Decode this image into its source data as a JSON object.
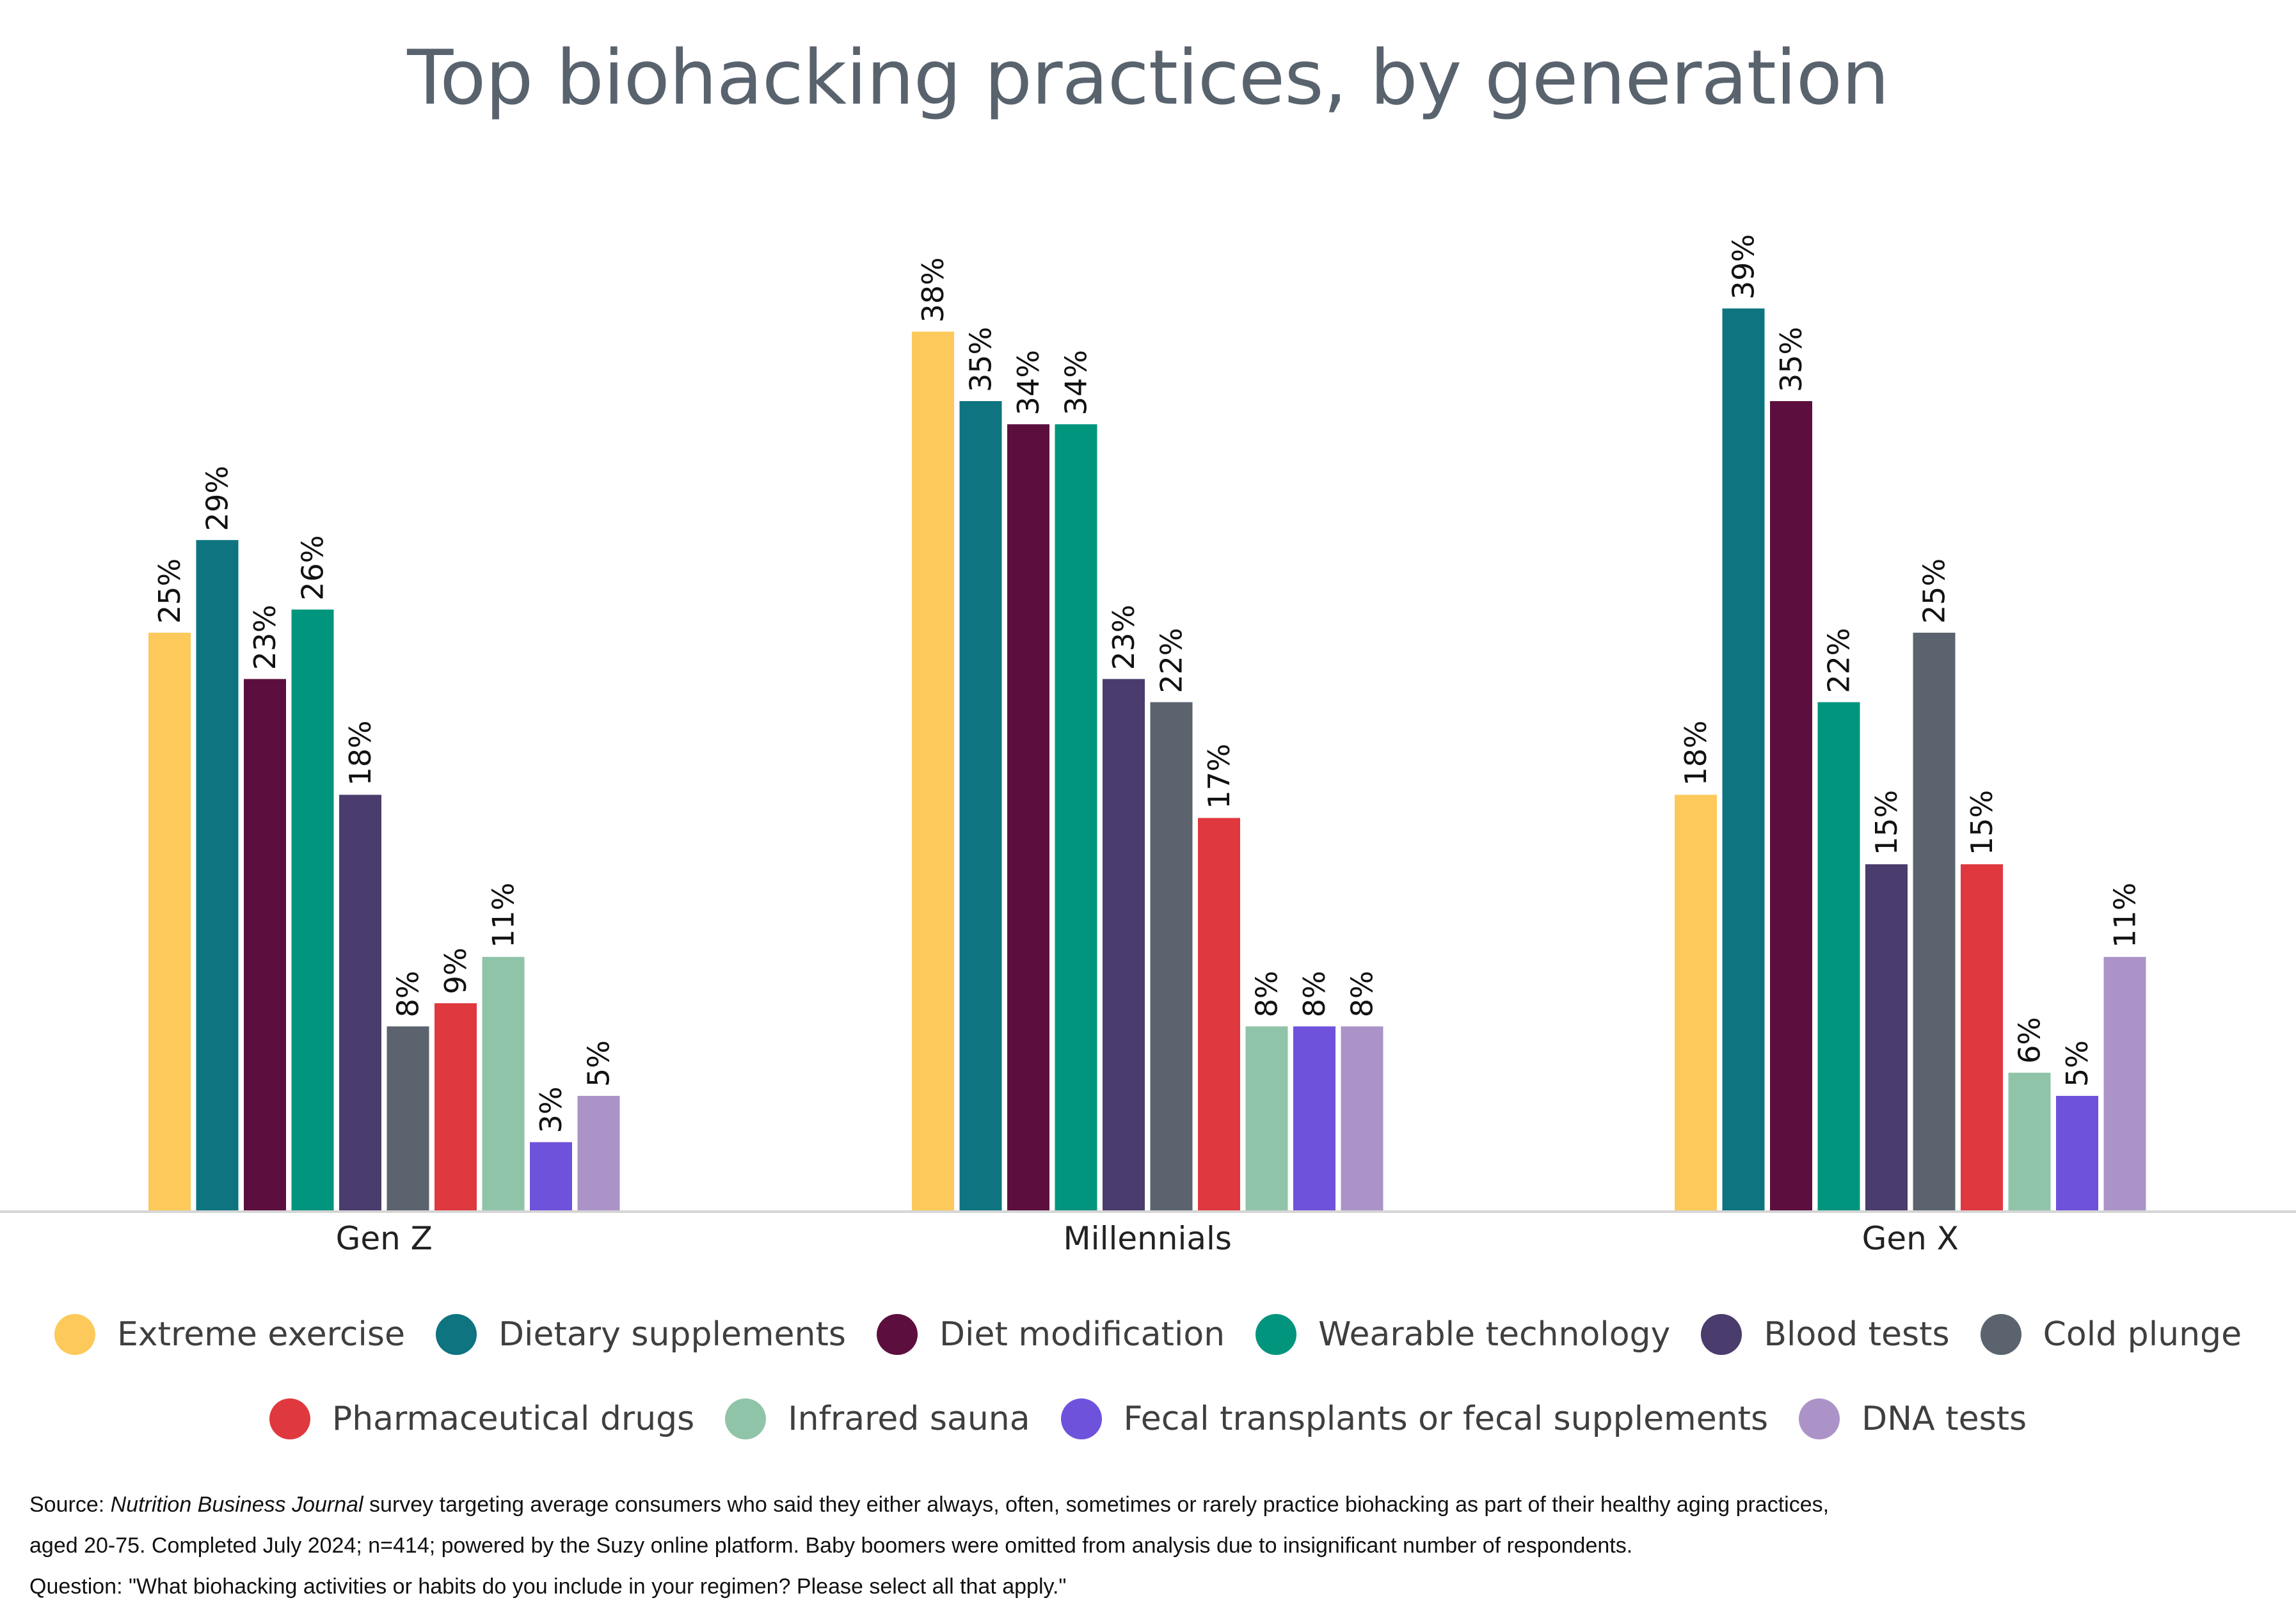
{
  "chart_data": {
    "type": "bar",
    "title": "Top biohacking practices, by generation",
    "categories": [
      "Gen Z",
      "Millennials",
      "Gen X"
    ],
    "ylim": [
      0,
      42
    ],
    "grid": false,
    "legend_position": "bottom",
    "series": [
      {
        "name": "Extreme exercise",
        "color": "#fdc95a",
        "values": [
          25,
          38,
          18
        ],
        "labels": [
          "25%",
          "38%",
          "18%"
        ]
      },
      {
        "name": "Dietary supplements",
        "color": "#0d7480",
        "values": [
          29,
          35,
          39
        ],
        "labels": [
          "29%",
          "35%",
          "39%"
        ]
      },
      {
        "name": "Diet modification",
        "color": "#5c0f3e",
        "values": [
          23,
          34,
          35
        ],
        "labels": [
          "23%",
          "34%",
          "35%"
        ]
      },
      {
        "name": "Wearable technology",
        "color": "#02957e",
        "values": [
          26,
          34,
          22
        ],
        "labels": [
          "26%",
          "34%",
          "22%"
        ]
      },
      {
        "name": "Blood tests",
        "color": "#4a3c6d",
        "values": [
          18,
          23,
          15
        ],
        "labels": [
          "18%",
          "23%",
          "15%"
        ]
      },
      {
        "name": "Cold plunge",
        "color": "#5b646e",
        "values": [
          8,
          22,
          25
        ],
        "labels": [
          "8%",
          "22%",
          "25%"
        ]
      },
      {
        "name": "Pharmaceutical drugs",
        "color": "#e0383f",
        "values": [
          9,
          17,
          15
        ],
        "labels": [
          "9%",
          "17%",
          "15%"
        ]
      },
      {
        "name": "Infrared sauna",
        "color": "#90c4a8",
        "values": [
          11,
          8,
          6
        ],
        "labels": [
          "11%",
          "8%",
          "6%"
        ]
      },
      {
        "name": "Fecal transplants or fecal supplements",
        "color": "#6f52dc",
        "values": [
          3,
          8,
          5
        ],
        "labels": [
          "3%",
          "8%",
          "5%"
        ]
      },
      {
        "name": "DNA tests",
        "color": "#ab93c8",
        "values": [
          5,
          8,
          11
        ],
        "labels": [
          "5%",
          "8%",
          "11%"
        ]
      }
    ]
  },
  "source": {
    "prefix": "Source: ",
    "publication": "Nutrition Business Journal",
    "line1_rest": " survey targeting average consumers who said they either always, often, sometimes or rarely practice biohacking as part of their healthy aging practices,",
    "line2": "aged 20-75. Completed July 2024;  n=414; powered by the Suzy online platform. Baby boomers were omitted from analysis due to insignificant number of respondents.",
    "line3": "Question: \"What biohacking activities or habits do you include in your regimen? Please select all that apply.\""
  }
}
